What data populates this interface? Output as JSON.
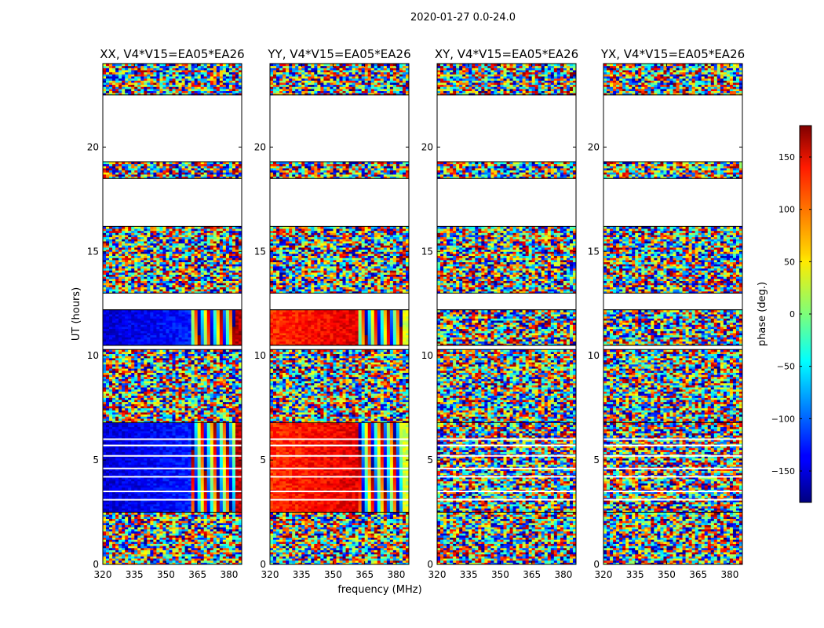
{
  "chart_data": {
    "type": "heatmap",
    "suptitle": "2020-01-27 0.0-24.0",
    "xlabel": "frequency (MHz)",
    "ylabel": "UT (hours)",
    "xlim": [
      320,
      386
    ],
    "ylim": [
      0,
      24
    ],
    "xticks": [
      320,
      335,
      350,
      365,
      380
    ],
    "yticks": [
      0,
      5,
      10,
      15,
      20
    ],
    "xtick_labels": [
      "320",
      "335",
      "350",
      "365",
      "380"
    ],
    "ytick_labels": [
      "0",
      "5",
      "10",
      "15",
      "20"
    ],
    "colorbar": {
      "label": "phase (deg.)",
      "colormap": "jet",
      "range": [
        -180,
        180
      ],
      "ticks": [
        -150,
        -100,
        -50,
        0,
        50,
        100,
        150
      ],
      "tick_labels": [
        "−150",
        "−100",
        "−50",
        "0",
        "50",
        "100",
        "150"
      ]
    },
    "panels": [
      {
        "title": "XX, V4*V15=EA05*EA26",
        "coherent_phase_deg": -150,
        "coherent_until_mhz": 361,
        "edge_phase_deg": 160
      },
      {
        "title": "YY, V4*V15=EA05*EA26",
        "coherent_phase_deg": 120,
        "coherent_until_mhz": 361,
        "edge_phase_deg": 30
      },
      {
        "title": "XY, V4*V15=EA05*EA26",
        "coherent_phase_deg": null,
        "coherent_until_mhz": null,
        "edge_phase_deg": null
      },
      {
        "title": "YX, V4*V15=EA05*EA26",
        "coherent_phase_deg": null,
        "coherent_until_mhz": null,
        "edge_phase_deg": null
      }
    ],
    "flagged_ut_ranges_hours": [
      [
        16.2,
        18.5
      ],
      [
        19.3,
        22.5
      ],
      [
        12.2,
        13.0
      ],
      [
        10.3,
        10.5
      ]
    ],
    "coherent_ut_ranges_hours": [
      [
        2.5,
        6.8
      ],
      [
        10.5,
        12.2
      ]
    ],
    "white_gap_lines_ut_hours": [
      3.1,
      3.5,
      4.2,
      4.6,
      5.2,
      5.7,
      6.0
    ]
  }
}
